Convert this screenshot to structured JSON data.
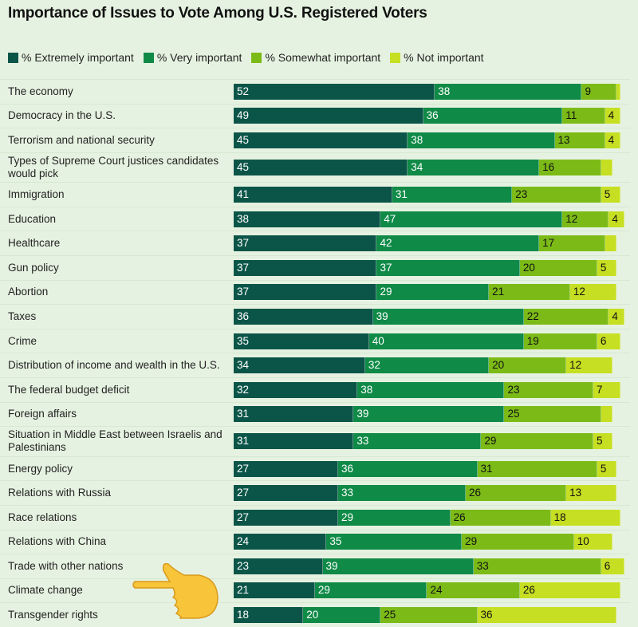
{
  "chart_data": {
    "type": "bar",
    "orientation": "horizontal-stacked",
    "title": "Importance of Issues to Vote Among U.S. Registered Voters",
    "xlim": [
      0,
      100
    ],
    "legend_position": "top-left",
    "series": [
      {
        "name": "% Extremely important",
        "color": "#0b5548",
        "text_color": "#ffffff"
      },
      {
        "name": "% Very important",
        "color": "#0f8a47",
        "text_color": "#ffffff"
      },
      {
        "name": "% Somewhat important",
        "color": "#7cbb17",
        "text_color": "#111111"
      },
      {
        "name": "% Not important",
        "color": "#c6df22",
        "text_color": "#111111"
      }
    ],
    "categories": [
      {
        "label": "The economy",
        "values": [
          52,
          38,
          9,
          1
        ]
      },
      {
        "label": "Democracy in the U.S.",
        "values": [
          49,
          36,
          11,
          4
        ]
      },
      {
        "label": "Terrorism and national security",
        "values": [
          45,
          38,
          13,
          4
        ]
      },
      {
        "label": "Types of Supreme Court justices candidates would pick",
        "values": [
          45,
          34,
          16,
          3
        ],
        "tall": true
      },
      {
        "label": "Immigration",
        "values": [
          41,
          31,
          23,
          5
        ]
      },
      {
        "label": "Education",
        "values": [
          38,
          47,
          12,
          4
        ]
      },
      {
        "label": "Healthcare",
        "values": [
          37,
          42,
          17,
          3
        ]
      },
      {
        "label": "Gun policy",
        "values": [
          37,
          37,
          20,
          5
        ]
      },
      {
        "label": "Abortion",
        "values": [
          37,
          29,
          21,
          12
        ]
      },
      {
        "label": "Taxes",
        "values": [
          36,
          39,
          22,
          4
        ]
      },
      {
        "label": "Crime",
        "values": [
          35,
          40,
          19,
          6
        ]
      },
      {
        "label": "Distribution of income and wealth in the U.S.",
        "values": [
          34,
          32,
          20,
          12
        ]
      },
      {
        "label": "The federal budget deficit",
        "values": [
          32,
          38,
          23,
          7
        ]
      },
      {
        "label": "Foreign affairs",
        "values": [
          31,
          39,
          25,
          3
        ]
      },
      {
        "label": "Situation in Middle East between Israelis and Palestinians",
        "values": [
          31,
          33,
          29,
          5
        ],
        "tall": true
      },
      {
        "label": "Energy policy",
        "values": [
          27,
          36,
          31,
          5
        ]
      },
      {
        "label": "Relations with Russia",
        "values": [
          27,
          33,
          26,
          13
        ]
      },
      {
        "label": "Race relations",
        "values": [
          27,
          29,
          26,
          18
        ]
      },
      {
        "label": "Relations with China",
        "values": [
          24,
          35,
          29,
          10
        ]
      },
      {
        "label": "Trade with other nations",
        "values": [
          23,
          39,
          33,
          6
        ]
      },
      {
        "label": "Climate change",
        "values": [
          21,
          29,
          24,
          26
        ]
      },
      {
        "label": "Transgender rights",
        "values": [
          18,
          20,
          25,
          36
        ]
      }
    ],
    "label_min_value": 4
  }
}
